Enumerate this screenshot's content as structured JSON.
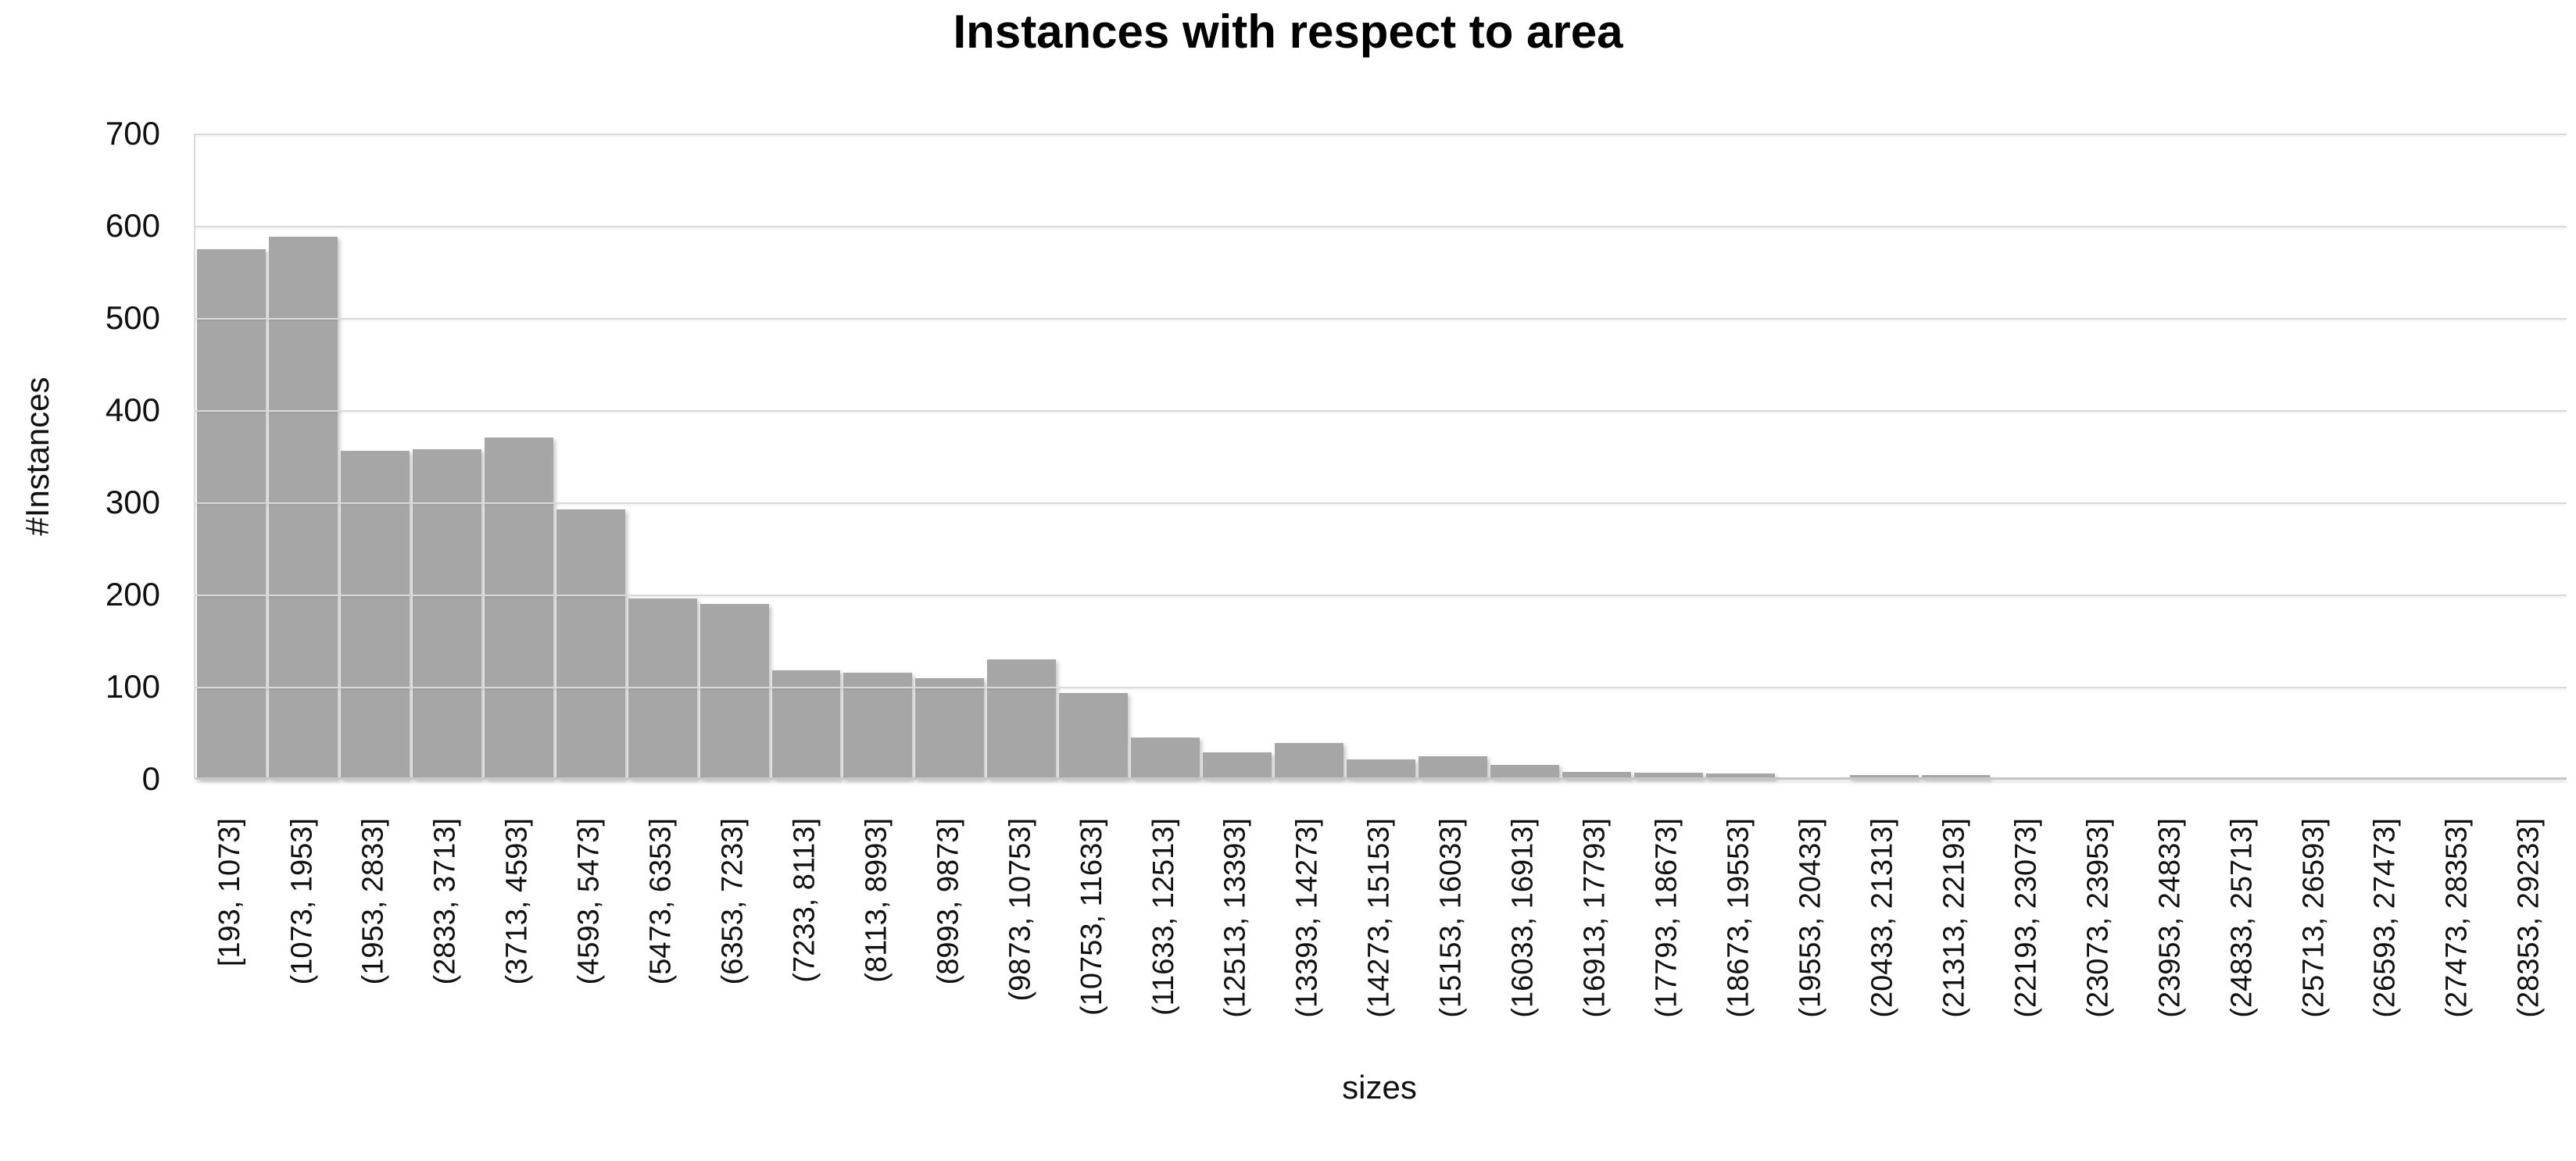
{
  "title": "Instances with respect to area",
  "y_axis": {
    "label": "#Instances"
  },
  "x_axis": {
    "label": "sizes"
  },
  "colors": {
    "bar_fill": "#a6a6a6",
    "gridline": "#d9d9d9",
    "axis_line": "#c6c6c6",
    "text": "#111111",
    "title_text": "#000000",
    "background": "#ffffff"
  },
  "chart_data": {
    "type": "bar",
    "title": "Instances with respect to area",
    "xlabel": "sizes",
    "ylabel": "#Instances",
    "ylim": [
      0,
      700
    ],
    "yticks": [
      0,
      100,
      200,
      300,
      400,
      500,
      600,
      700
    ],
    "grid": true,
    "legend": false,
    "bar_color": "#a6a6a6",
    "categories": [
      "[193, 1073]",
      "(1073, 1953]",
      "(1953, 2833]",
      "(2833, 3713]",
      "(3713, 4593]",
      "(4593, 5473]",
      "(5473, 6353]",
      "(6353, 7233]",
      "(7233, 8113]",
      "(8113, 8993]",
      "(8993, 9873]",
      "(9873, 10753]",
      "(10753, 11633]",
      "(11633, 12513]",
      "(12513, 13393]",
      "(13393, 14273]",
      "(14273, 15153]",
      "(15153, 16033]",
      "(16033, 16913]",
      "(16913, 17793]",
      "(17793, 18673]",
      "(18673, 19553]",
      "(19553, 20433]",
      "(20433, 21313]",
      "(21313, 22193]",
      "(22193, 23073]",
      "(23073, 23953]",
      "(23953, 24833]",
      "(24833, 25713]",
      "(25713, 26593]",
      "(26593, 27473]",
      "(27473, 28353]",
      "(28353, 29233]"
    ],
    "values": [
      575,
      588,
      356,
      358,
      370,
      292,
      196,
      190,
      118,
      115,
      109,
      130,
      93,
      45,
      29,
      39,
      21,
      25,
      15,
      8,
      7,
      6,
      0,
      4,
      4,
      0,
      0,
      0,
      0,
      0,
      0,
      0,
      0
    ]
  }
}
